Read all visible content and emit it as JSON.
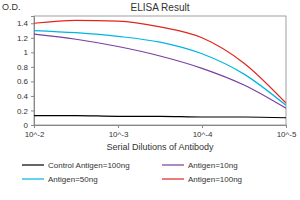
{
  "chart_data": {
    "type": "line",
    "title": "ELISA Result",
    "y_label": "O.D.",
    "x_label": "Serial Dilutions of Antibody",
    "log": "x",
    "x": [
      0.01,
      0.00316,
      0.001,
      0.000316,
      0.0001,
      3.16e-05,
      1e-05
    ],
    "series": [
      {
        "name": "Control Antigen=100ng",
        "color": "#000000",
        "values": [
          0.13,
          0.13,
          0.12,
          0.12,
          0.11,
          0.11,
          0.1
        ]
      },
      {
        "name": "Antigen=10ng",
        "color": "#7b3fa0",
        "values": [
          1.25,
          1.18,
          1.08,
          0.95,
          0.78,
          0.55,
          0.23
        ]
      },
      {
        "name": "Antigen=50ng",
        "color": "#00b5e2",
        "values": [
          1.3,
          1.27,
          1.22,
          1.14,
          0.98,
          0.7,
          0.27
        ]
      },
      {
        "name": "Antigen=100ng",
        "color": "#e2251e",
        "values": [
          1.4,
          1.44,
          1.43,
          1.35,
          1.2,
          0.85,
          0.3
        ]
      }
    ],
    "xlim": [
      0.01,
      1e-05
    ],
    "xticks": [
      {
        "value": 0.01,
        "label": "10^-2"
      },
      {
        "value": 0.001,
        "label": "10^-3"
      },
      {
        "value": 0.0001,
        "label": "10^-4"
      },
      {
        "value": 1e-05,
        "label": "10^-5"
      }
    ],
    "ylim": [
      0,
      1.5
    ],
    "yticks": [
      0,
      0.2,
      0.4,
      0.6,
      0.8,
      1,
      1.2,
      1.4
    ],
    "grid": false,
    "legend": "bottom"
  }
}
